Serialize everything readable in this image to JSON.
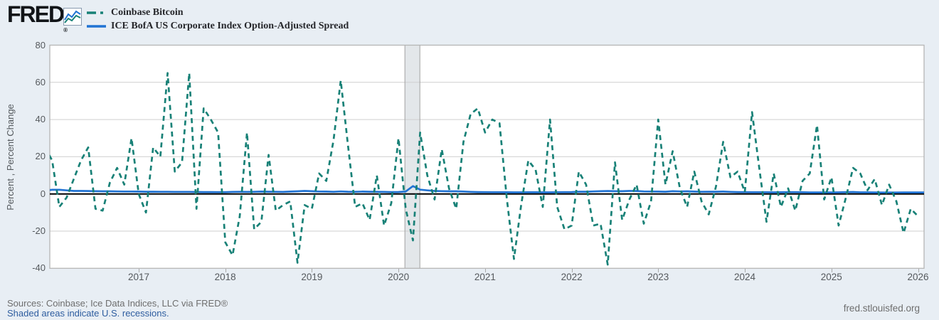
{
  "header": {
    "logo_text": "FRED",
    "logo_reg": "®"
  },
  "legend": {
    "items": [
      {
        "label": "Coinbase Bitcoin",
        "line_style": "dashed",
        "color": "#188177"
      },
      {
        "label": "ICE BofA US Corporate Index Option-Adjusted Spread",
        "line_style": "solid",
        "color": "#2173d3"
      }
    ]
  },
  "y_axis": {
    "label": "Percent , Percent Change"
  },
  "footer": {
    "sources": "Sources: Coinbase; Ice Data Indices, LLC via FRED®",
    "recessions_note": "Shaded areas indicate U.S. recessions.",
    "site_link": "fred.stlouisfed.org"
  },
  "chart_data": {
    "type": "line",
    "title": "",
    "xlabel": "",
    "ylabel": "Percent , Percent Change",
    "ylim": [
      -40,
      80
    ],
    "yticks": [
      80,
      60,
      40,
      20,
      0,
      -20,
      -40
    ],
    "xticks": [
      2017,
      2018,
      2019,
      2020,
      2021,
      2022,
      2023,
      2024,
      2025,
      2026
    ],
    "x_range": [
      2015.973,
      2026.07
    ],
    "x_start": 2015.9167,
    "x_step": "monthly",
    "grid": "horizontal",
    "zero_line": true,
    "legend_position": "top-left",
    "recession_bands": [
      {
        "start": 2020.074,
        "end": 2020.247
      }
    ],
    "colors": {
      "canvas_bg": "#e8eef4",
      "plot_bg": "#ffffff",
      "grid": "#cfcfcf",
      "border": "#b5b5b5",
      "zero_line": "#000000",
      "recession_fill": "#e3e7ea",
      "recession_edge": "#a2a2a2"
    },
    "series": [
      {
        "name": "Coinbase Bitcoin",
        "units": "Percent Change (monthly)",
        "color": "#188177",
        "style": "dashed",
        "values": [
          25,
          18,
          -7,
          -2,
          8,
          18,
          25,
          -8,
          -9,
          6,
          14,
          5,
          30,
          0,
          -10,
          25,
          20,
          65,
          12,
          17,
          65,
          -8,
          46,
          40,
          33,
          -26,
          -33,
          -12,
          33,
          -19,
          -15,
          21,
          -9,
          -6,
          -4,
          -37,
          -6,
          -8,
          11,
          7,
          29,
          61,
          26,
          -7,
          -5,
          -14,
          10,
          -17,
          -5,
          30,
          -8,
          -25,
          33,
          10,
          -3,
          24,
          3,
          -8,
          28,
          43,
          46,
          33,
          40,
          38,
          -2,
          -35,
          -6,
          18,
          13,
          -7,
          40,
          -7,
          -19,
          -17,
          12,
          5,
          -17,
          -16,
          -38,
          17,
          -14,
          -3,
          5,
          -16,
          -4,
          40,
          5,
          23,
          3,
          -7,
          12,
          -4,
          -11,
          4,
          28,
          9,
          12,
          1,
          44,
          14,
          -15,
          11,
          -7,
          3,
          -9,
          7,
          11,
          37,
          -3,
          9,
          -17,
          -2,
          14,
          11,
          2,
          8,
          -6,
          5,
          -4,
          -21,
          -8,
          -12
        ]
      },
      {
        "name": "ICE BofA US Corporate Index Option-Adjusted Spread",
        "units": "Percent",
        "color": "#2173d3",
        "style": "solid",
        "values": [
          1.8,
          2.2,
          2.2,
          1.9,
          1.6,
          1.6,
          1.55,
          1.45,
          1.4,
          1.4,
          1.35,
          1.3,
          1.3,
          1.25,
          1.2,
          1.2,
          1.15,
          1.15,
          1.1,
          1.1,
          1.1,
          1.05,
          1.0,
          1.0,
          0.95,
          0.95,
          1.1,
          1.15,
          1.1,
          1.15,
          1.25,
          1.2,
          1.15,
          1.1,
          1.25,
          1.4,
          1.6,
          1.45,
          1.3,
          1.25,
          1.15,
          1.35,
          1.2,
          1.15,
          1.25,
          1.2,
          1.15,
          1.1,
          1.0,
          1.05,
          1.3,
          4.2,
          2.3,
          1.9,
          1.6,
          1.5,
          1.4,
          1.4,
          1.3,
          1.1,
          1.0,
          0.95,
          0.9,
          0.9,
          0.87,
          0.85,
          0.85,
          0.87,
          0.87,
          0.85,
          0.85,
          0.9,
          0.95,
          1.0,
          1.2,
          1.2,
          1.35,
          1.45,
          1.55,
          1.45,
          1.45,
          1.6,
          1.55,
          1.35,
          1.3,
          1.25,
          1.2,
          1.45,
          1.35,
          1.4,
          1.25,
          1.15,
          1.2,
          1.2,
          1.25,
          1.1,
          1.0,
          0.95,
          0.9,
          0.9,
          0.9,
          0.85,
          0.9,
          0.95,
          0.95,
          0.9,
          0.8,
          0.8,
          0.8,
          0.8,
          0.85,
          0.95,
          1.05,
          0.85,
          0.85,
          0.8,
          0.78,
          0.75,
          0.75,
          0.8,
          0.8,
          0.8,
          0.8
        ]
      }
    ]
  }
}
